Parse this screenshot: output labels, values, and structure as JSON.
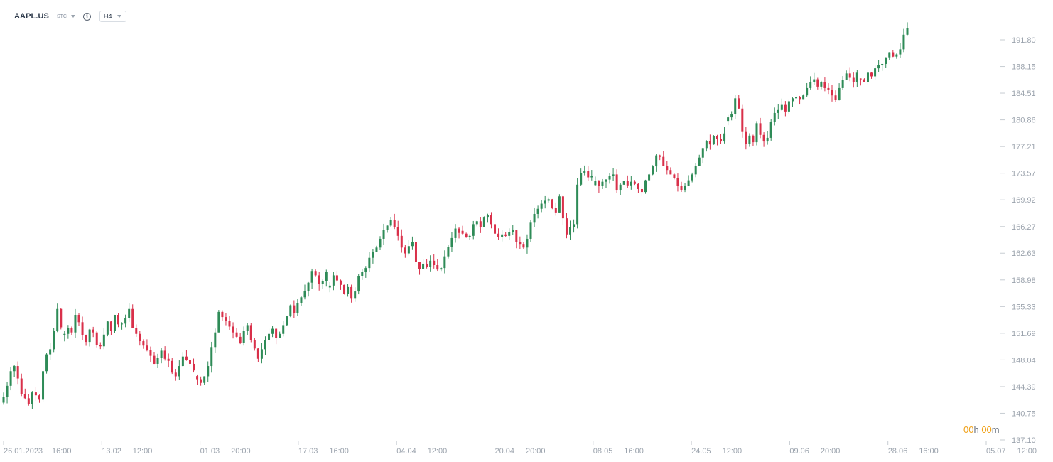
{
  "header": {
    "symbol": "AAPL.US",
    "instrument_type": "STC",
    "info_icon": "info-icon",
    "timeframe": "H4"
  },
  "timer": {
    "hours": "00",
    "hours_unit": "h",
    "minutes": "00",
    "minutes_unit": "m"
  },
  "colors": {
    "up": "#2e8b57",
    "down": "#d9304a",
    "axis_text": "#9ba3ad",
    "timer_number": "#f0a118"
  },
  "chart_data": {
    "type": "candlestick",
    "title": "",
    "ylim": [
      137.1,
      195.0
    ],
    "y_ticks": [
      "191.80",
      "188.15",
      "184.51",
      "180.86",
      "177.21",
      "173.57",
      "169.92",
      "166.27",
      "162.63",
      "158.98",
      "155.33",
      "151.69",
      "148.04",
      "144.39",
      "140.75",
      "137.10"
    ],
    "x_ticks": [
      {
        "date": "26.01.2023",
        "time": "16:00"
      },
      {
        "date": "13.02",
        "time": "12:00"
      },
      {
        "date": "01.03",
        "time": "20:00"
      },
      {
        "date": "17.03",
        "time": "16:00"
      },
      {
        "date": "04.04",
        "time": "12:00"
      },
      {
        "date": "20.04",
        "time": "20:00"
      },
      {
        "date": "08.05",
        "time": "16:00"
      },
      {
        "date": "24.05",
        "time": "12:00"
      },
      {
        "date": "09.06",
        "time": "20:00"
      },
      {
        "date": "28.06",
        "time": "16:00"
      },
      {
        "date": "05.07",
        "time": "12:00"
      }
    ],
    "closes": [
      143.0,
      144.5,
      146.5,
      147.2,
      145.5,
      143.4,
      142.8,
      142.0,
      143.6,
      143.2,
      142.6,
      146.5,
      148.8,
      149.5,
      152.0,
      155.0,
      152.5,
      151.6,
      152.4,
      151.8,
      154.2,
      153.2,
      151.4,
      150.5,
      152.2,
      151.8,
      150.1,
      149.9,
      151.5,
      153.3,
      152.0,
      154.2,
      152.9,
      153.0,
      153.8,
      155.0,
      152.4,
      151.6,
      150.6,
      150.0,
      149.4,
      148.6,
      147.5,
      148.3,
      149.3,
      148.2,
      147.9,
      146.3,
      145.8,
      147.2,
      148.5,
      148.0,
      147.5,
      146.6,
      145.4,
      144.9,
      145.8,
      147.2,
      149.8,
      151.8,
      154.6,
      153.9,
      153.4,
      152.6,
      151.8,
      151.2,
      150.4,
      152.0,
      152.8,
      150.8,
      149.6,
      148.2,
      149.5,
      150.8,
      151.6,
      152.3,
      151.0,
      151.6,
      152.8,
      154.0,
      155.5,
      154.4,
      155.8,
      156.6,
      157.5,
      158.6,
      160.2,
      159.6,
      158.4,
      158.8,
      160.1,
      158.2,
      159.6,
      158.9,
      158.3,
      157.1,
      158.0,
      156.5,
      157.4,
      159.5,
      160.1,
      160.6,
      162.0,
      162.8,
      163.4,
      164.6,
      165.8,
      166.4,
      167.2,
      166.2,
      165.0,
      163.4,
      162.6,
      163.6,
      164.2,
      161.4,
      160.5,
      161.2,
      160.8,
      161.6,
      161.0,
      160.4,
      160.6,
      162.2,
      163.5,
      164.7,
      166.0,
      165.4,
      165.3,
      164.8,
      165.0,
      166.6,
      167.0,
      166.2,
      167.5,
      167.8,
      166.6,
      165.3,
      164.8,
      165.2,
      165.0,
      165.5,
      165.8,
      164.2,
      163.9,
      163.4,
      164.6,
      166.8,
      168.0,
      168.7,
      169.4,
      169.8,
      170.0,
      168.8,
      168.2,
      170.4,
      167.4,
      165.2,
      166.2,
      166.6,
      172.0,
      173.6,
      173.9,
      173.0,
      173.2,
      172.5,
      171.8,
      172.4,
      172.7,
      173.2,
      173.4,
      171.2,
      172.0,
      172.5,
      171.9,
      172.4,
      172.1,
      171.4,
      171.0,
      172.6,
      173.4,
      174.5,
      176.0,
      175.8,
      174.6,
      174.0,
      173.4,
      172.9,
      171.8,
      171.2,
      171.8,
      172.6,
      173.4,
      174.6,
      175.7,
      177.0,
      178.0,
      177.5,
      178.6,
      178.2,
      177.9,
      179.0,
      181.2,
      181.6,
      183.8,
      182.4,
      179.2,
      177.6,
      178.7,
      177.8,
      180.4,
      178.8,
      177.9,
      178.4,
      180.6,
      181.8,
      182.2,
      182.9,
      182.0,
      183.4,
      183.8,
      184.0,
      183.7,
      184.2,
      185.2,
      186.0,
      186.4,
      185.4,
      186.0,
      185.2,
      185.0,
      184.2,
      183.6,
      185.2,
      186.3,
      187.2,
      186.6,
      186.0,
      187.3,
      186.4,
      186.0,
      187.3,
      186.8,
      187.9,
      188.3,
      188.5,
      189.4,
      190.1,
      189.5,
      189.8,
      190.5,
      192.5,
      193.4
    ]
  }
}
